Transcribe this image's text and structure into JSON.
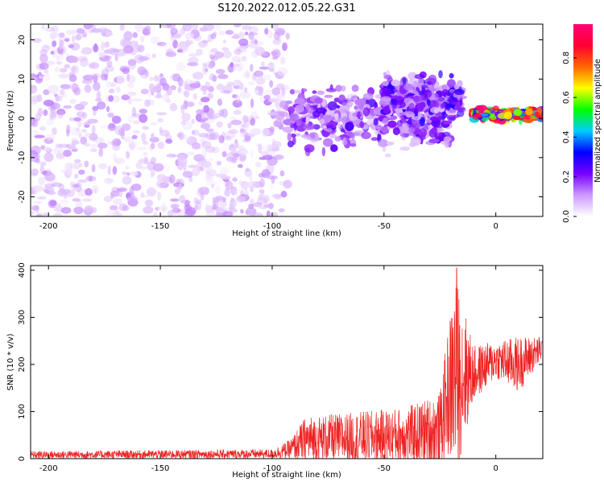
{
  "title": "S120.2022.012.05.22.G31",
  "chart_data": [
    {
      "type": "heatmap",
      "xlabel": "Height of straight line (km)",
      "ylabel": "Frequency (Hz)",
      "xlim": [
        -208,
        21
      ],
      "ylim": [
        -25,
        24
      ],
      "xticks": [
        -200,
        -150,
        -100,
        -50,
        0
      ],
      "yticks": [
        -20,
        -10,
        0,
        10,
        20
      ],
      "colorbar": {
        "label": "Normalized spectral amplitude",
        "range": [
          0.0,
          0.97
        ],
        "ticks": [
          0.0,
          0.2,
          0.4,
          0.6,
          0.8
        ],
        "colors": [
          "#ffffff",
          "#cc99ff",
          "#7700ff",
          "#0000ff",
          "#00ccff",
          "#00ff00",
          "#ffff00",
          "#ff6600",
          "#ff0033",
          "#ff0077"
        ]
      },
      "regions": [
        {
          "x": [
            -208,
            -93
          ],
          "freq": [
            -25,
            24
          ],
          "amplitude": 0.08,
          "description": "broadband noise"
        },
        {
          "x": [
            -93,
            -20
          ],
          "freq_center": 0,
          "freq_spread": 6,
          "amplitude": 0.15
        },
        {
          "x": [
            -50,
            -15
          ],
          "freq_center": 5,
          "freq_spread": 4,
          "amplitude": 0.18
        },
        {
          "x": [
            -10,
            21
          ],
          "freq_center": 1,
          "freq_spread": 1,
          "amplitude": 0.6
        }
      ]
    },
    {
      "type": "line",
      "xlabel": "Height of straight line (km)",
      "ylabel": "SNR (10 * v/v)",
      "xlim": [
        -208,
        21
      ],
      "ylim": [
        0,
        410
      ],
      "xticks": [
        -200,
        -150,
        -100,
        -50,
        0
      ],
      "yticks": [
        0,
        100,
        200,
        300,
        400
      ],
      "color": "#ee2222",
      "envelope": [
        {
          "x": -208,
          "mean": 8,
          "amp": 8
        },
        {
          "x": -100,
          "mean": 10,
          "amp": 10
        },
        {
          "x": -92,
          "mean": 20,
          "amp": 20
        },
        {
          "x": -85,
          "mean": 40,
          "amp": 50
        },
        {
          "x": -60,
          "mean": 45,
          "amp": 55
        },
        {
          "x": -40,
          "mean": 50,
          "amp": 60
        },
        {
          "x": -25,
          "mean": 60,
          "amp": 80
        },
        {
          "x": -22,
          "mean": 130,
          "amp": 120
        },
        {
          "x": -18,
          "mean": 180,
          "amp": 220
        },
        {
          "x": -10,
          "mean": 180,
          "amp": 60
        },
        {
          "x": 0,
          "mean": 210,
          "amp": 40
        },
        {
          "x": 10,
          "mean": 200,
          "amp": 60
        },
        {
          "x": 21,
          "mean": 235,
          "amp": 25
        }
      ],
      "peak": {
        "x": -17.5,
        "y": 405
      }
    }
  ]
}
